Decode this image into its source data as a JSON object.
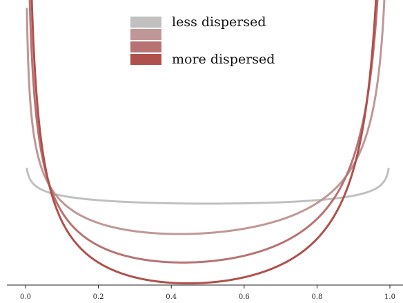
{
  "chart_data": {
    "type": "line",
    "title": "",
    "xlabel": "",
    "ylabel": "",
    "xlim": [
      0.0,
      1.0
    ],
    "xticks": [
      0.0,
      0.2,
      0.4,
      0.6,
      0.8,
      1.0
    ],
    "xtick_labels": [
      "0.0",
      "0.2",
      "0.4",
      "0.6",
      "0.8",
      "1.0"
    ],
    "y_axis_shown": false,
    "grid": false,
    "legend": {
      "placement": "top-center",
      "entries": [
        {
          "label": "less dispersed",
          "color": "#c0c0c0"
        },
        {
          "label": "",
          "color": "#bf9797"
        },
        {
          "label": "",
          "color": "#b97272"
        },
        {
          "label": "more dispersed",
          "color": "#b0504c"
        }
      ]
    },
    "series": [
      {
        "color": "#c0c0c0",
        "alpha": 0.96,
        "beta": 0.96
      },
      {
        "color": "#bf9797",
        "alpha": 0.78,
        "beta": 0.7
      },
      {
        "color": "#b97272",
        "alpha": 0.62,
        "beta": 0.5
      },
      {
        "color": "#b0504c",
        "alpha": 0.5,
        "beta": 0.38
      }
    ]
  }
}
